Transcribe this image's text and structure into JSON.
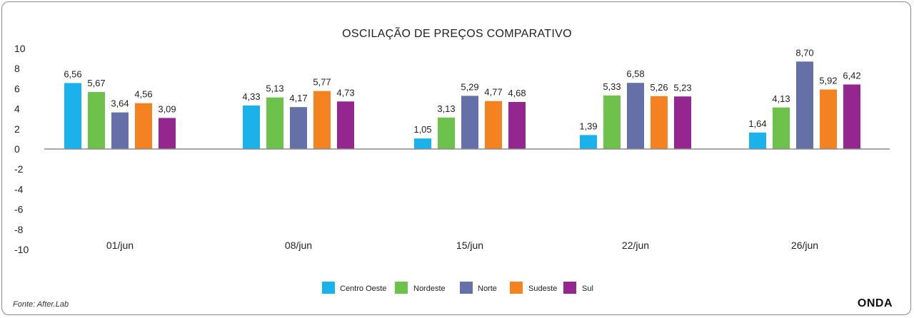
{
  "chart_data": {
    "type": "bar",
    "title": "OSCILAÇÃO DE PREÇOS COMPARATIVO",
    "xlabel": "",
    "ylabel": "",
    "ylim": [
      -10,
      10
    ],
    "yticks": [
      10,
      8,
      6,
      4,
      2,
      0,
      -2,
      -4,
      -6,
      -8,
      -10
    ],
    "ytick_labels": [
      "10",
      "8",
      "6",
      "4",
      "2",
      "0",
      "-2",
      "-4",
      "-6",
      "-8",
      "-10"
    ],
    "categories": [
      "01/jun",
      "08/jun",
      "15/jun",
      "22/jun",
      "26/jun"
    ],
    "series": [
      {
        "name": "Centro Oeste",
        "color": "#1bb1ea",
        "values": [
          6.56,
          4.33,
          1.05,
          1.39,
          1.64
        ],
        "labels": [
          "6,56",
          "4,33",
          "1,05",
          "1,39",
          "1,64"
        ]
      },
      {
        "name": "Nordeste",
        "color": "#6cc24a",
        "values": [
          5.67,
          5.13,
          3.13,
          5.33,
          4.13
        ],
        "labels": [
          "5,67",
          "5,13",
          "3,13",
          "5,33",
          "4,13"
        ]
      },
      {
        "name": "Norte",
        "color": "#6670a8",
        "values": [
          3.64,
          4.17,
          5.29,
          6.58,
          8.7
        ],
        "labels": [
          "3,64",
          "4,17",
          "5,29",
          "6,58",
          "8,70"
        ]
      },
      {
        "name": "Sudeste",
        "color": "#f58220",
        "values": [
          4.56,
          5.77,
          4.77,
          5.26,
          5.92
        ],
        "labels": [
          "4,56",
          "5,77",
          "4,77",
          "5,26",
          "5,92"
        ]
      },
      {
        "name": "Sul",
        "color": "#93268f",
        "values": [
          3.09,
          4.73,
          4.68,
          5.23,
          6.42
        ],
        "labels": [
          "3,09",
          "4,73",
          "4,68",
          "5,23",
          "6,42"
        ]
      }
    ],
    "legend": "bottom-center",
    "grid": false
  },
  "footer": {
    "source": "Fonte: After.Lab",
    "logo": "ONDA"
  }
}
